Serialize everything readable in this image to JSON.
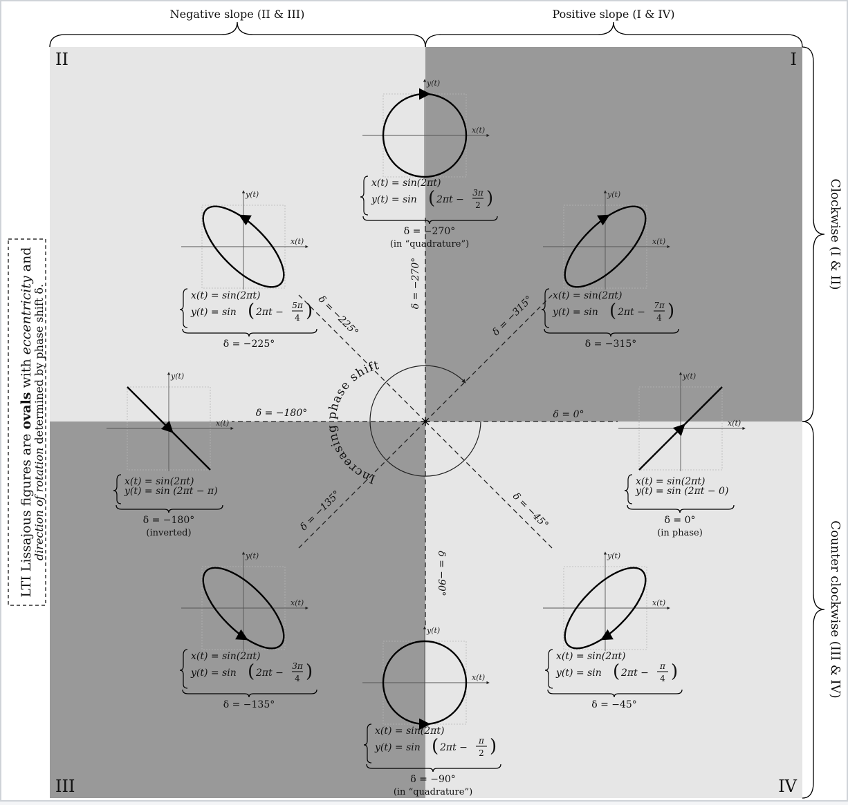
{
  "braces": {
    "top_left": "Negative slope (II & III)",
    "top_right": "Positive slope (I & IV)",
    "right_top": "Clockwise (I & II)",
    "right_bottom": "Counter clockwise (III & IV)"
  },
  "quadrants": {
    "I": "I",
    "II": "II",
    "III": "III",
    "IV": "IV"
  },
  "side_note": {
    "line1_pre": "LTI Lissajous figures are ",
    "line1_bold": "ovals",
    "line1_mid": " with ",
    "line1_em": "eccentricity",
    "line1_post": " and",
    "line2_em": "direction of rotation",
    "line2_post": " determined by phase shift δ."
  },
  "center": {
    "arc_text": "Increasing phase shift"
  },
  "axis_labels": {
    "x": "x(t)",
    "y": "y(t)"
  },
  "lines": {
    "d0": "δ = 0°",
    "d45": "δ = −45°",
    "d90": "δ = −90°",
    "d135": "δ = −135°",
    "d180": "δ = −180°",
    "d225": "δ = −225°",
    "d270": "δ = −270°",
    "d315": "δ = −315°"
  },
  "panels": [
    {
      "id": "d0",
      "x_eq": "x(t) = sin(2πt)",
      "y_eq": "y(t) = sin (2πt − 0)",
      "delta": "δ = 0°",
      "note": "(in phase)"
    },
    {
      "id": "d45",
      "x_eq": "x(t) = sin(2πt)",
      "y_eq_pre": "y(t) = sin",
      "frac_num": "π",
      "frac_den": "4",
      "delta": "δ = −45°",
      "note": ""
    },
    {
      "id": "d90",
      "x_eq": "x(t) = sin(2πt)",
      "y_eq_pre": "y(t) = sin",
      "frac_num": "π",
      "frac_den": "2",
      "delta": "δ = −90°",
      "note": "(in “quadrature”)"
    },
    {
      "id": "d135",
      "x_eq": "x(t) = sin(2πt)",
      "y_eq_pre": "y(t) = sin",
      "frac_num": "3π",
      "frac_den": "4",
      "delta": "δ = −135°",
      "note": ""
    },
    {
      "id": "d180",
      "x_eq": "x(t) = sin(2πt)",
      "y_eq": "y(t) = sin (2πt − π)",
      "delta": "δ = −180°",
      "note": "(inverted)"
    },
    {
      "id": "d225",
      "x_eq": "x(t) = sin(2πt)",
      "y_eq_pre": "y(t) = sin",
      "frac_num": "5π",
      "frac_den": "4",
      "delta": "δ = −225°",
      "note": ""
    },
    {
      "id": "d270",
      "x_eq": "x(t) = sin(2πt)",
      "y_eq_pre": "y(t) = sin",
      "frac_num": "3π",
      "frac_den": "2",
      "delta": "δ = −270°",
      "note": "(in “quadrature”)"
    },
    {
      "id": "d315",
      "x_eq": "x(t) = sin(2πt)",
      "y_eq_pre": "y(t) = sin",
      "frac_num": "7π",
      "frac_den": "4",
      "delta": "δ = −315°",
      "note": ""
    }
  ],
  "colors": {
    "dark": "#999999",
    "light": "#e6e6e6",
    "frame": "#d0d4da"
  }
}
